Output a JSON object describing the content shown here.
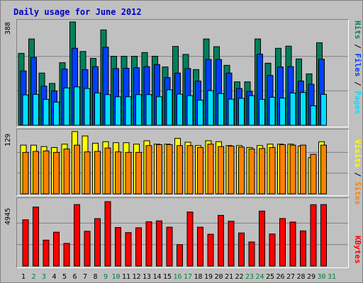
{
  "title": "Daily usage for June 2012",
  "colors": {
    "hits": "#00805c",
    "files": "#0040ff",
    "pages": "#00e0ff",
    "visits": "#ffff00",
    "sites": "#ff8000",
    "kbytes": "#ff0000",
    "weekend_label": "#008040",
    "weekday_label": "#000000"
  },
  "legend_top": {
    "pages": "Pages",
    "files": "Files",
    "hits": "Hits",
    "sep": " / "
  },
  "legend_mid": {
    "sites": "Sites",
    "visits": "Visits",
    "sep": " / "
  },
  "legend_bot": {
    "kbytes": "KBytes"
  },
  "chart_data": [
    {
      "type": "bar",
      "panel": "hits-files-pages",
      "max_label": "388",
      "ylim": [
        0,
        388
      ],
      "categories": [
        "1",
        "2",
        "3",
        "4",
        "5",
        "6",
        "7",
        "8",
        "9",
        "10",
        "11",
        "12",
        "13",
        "14",
        "15",
        "16",
        "17",
        "18",
        "19",
        "20",
        "21",
        "22",
        "23",
        "24",
        "25",
        "26",
        "27",
        "28",
        "29",
        "30",
        "31"
      ],
      "series": [
        {
          "name": "Hits",
          "values": [
            270,
            324,
            196,
            157,
            235,
            388,
            277,
            251,
            358,
            259,
            259,
            259,
            273,
            259,
            219,
            296,
            266,
            209,
            324,
            295,
            225,
            163,
            163,
            324,
            233,
            289,
            297,
            249,
            193,
            310,
            0
          ]
        },
        {
          "name": "Files",
          "values": [
            204,
            255,
            147,
            129,
            211,
            289,
            209,
            220,
            293,
            213,
            214,
            216,
            220,
            228,
            179,
            196,
            213,
            166,
            247,
            247,
            196,
            138,
            127,
            267,
            187,
            219,
            220,
            166,
            154,
            248,
            0
          ]
        },
        {
          "name": "Pages",
          "values": [
            114,
            116,
            97,
            87,
            140,
            144,
            138,
            121,
            115,
            107,
            107,
            115,
            115,
            107,
            133,
            117,
            111,
            94,
            130,
            119,
            98,
            101,
            111,
            97,
            105,
            102,
            121,
            123,
            73,
            116,
            0
          ]
        }
      ]
    },
    {
      "type": "bar",
      "panel": "visits-sites",
      "max_label": "129",
      "ylim": [
        0,
        129
      ],
      "categories": [
        "1",
        "2",
        "3",
        "4",
        "5",
        "6",
        "7",
        "8",
        "9",
        "10",
        "11",
        "12",
        "13",
        "14",
        "15",
        "16",
        "17",
        "18",
        "19",
        "20",
        "21",
        "22",
        "23",
        "24",
        "25",
        "26",
        "27",
        "28",
        "29",
        "30",
        "31"
      ],
      "series": [
        {
          "name": "Visits",
          "values": [
            101,
            101,
            98,
            96,
            103,
            129,
            120,
            105,
            108,
            106,
            106,
            103,
            110,
            103,
            103,
            115,
            107,
            100,
            110,
            108,
            100,
            100,
            96,
            100,
            103,
            103,
            103,
            99,
            75,
            108,
            0
          ]
        },
        {
          "name": "Sites",
          "values": [
            86,
            88,
            89,
            86,
            93,
            101,
            87,
            88,
            95,
            87,
            86,
            86,
            100,
            102,
            102,
            100,
            100,
            96,
            103,
            98,
            99,
            97,
            93,
            94,
            96,
            102,
            101,
            101,
            82,
            101,
            0
          ]
        }
      ]
    },
    {
      "type": "bar",
      "panel": "kbytes",
      "max_label": "4945",
      "ylim": [
        0,
        4945
      ],
      "categories": [
        "1",
        "2",
        "3",
        "4",
        "5",
        "6",
        "7",
        "8",
        "9",
        "10",
        "11",
        "12",
        "13",
        "14",
        "15",
        "16",
        "17",
        "18",
        "19",
        "20",
        "21",
        "22",
        "23",
        "24",
        "25",
        "26",
        "27",
        "28",
        "29",
        "30",
        "31"
      ],
      "series": [
        {
          "name": "KBytes",
          "values": [
            3550,
            4530,
            1990,
            2600,
            1740,
            4720,
            2670,
            3640,
            4945,
            2960,
            2570,
            2940,
            3400,
            3470,
            2980,
            1640,
            4150,
            2980,
            2440,
            3890,
            3440,
            2540,
            1850,
            4220,
            2460,
            3650,
            3380,
            2700,
            4710,
            4720,
            0
          ]
        }
      ]
    }
  ]
}
